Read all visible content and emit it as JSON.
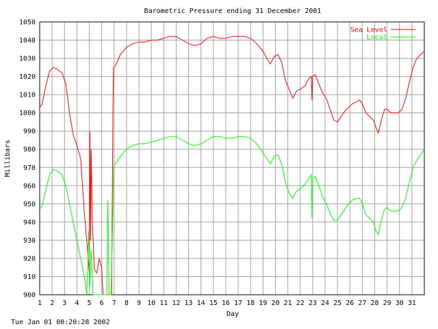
{
  "footer_timestamp": "Tue Jan 01 00:20:28 2002",
  "chart_data": {
    "type": "line",
    "title": "Barometric Pressure ending 31 December 2001",
    "xlabel": "Day",
    "ylabel": "Millibars",
    "xlim": [
      1,
      32
    ],
    "ylim": [
      900,
      1050
    ],
    "x_ticks": [
      "1",
      "2",
      "3",
      "4",
      "5",
      "6",
      "7",
      "8",
      "9",
      "10",
      "11",
      "12",
      "13",
      "14",
      "15",
      "16",
      "17",
      "18",
      "19",
      "20",
      "21",
      "22",
      "23",
      "24",
      "25",
      "26",
      "27",
      "28",
      "29",
      "30",
      "31"
    ],
    "y_ticks": [
      900,
      910,
      920,
      930,
      940,
      950,
      960,
      970,
      980,
      990,
      1000,
      1010,
      1020,
      1030,
      1040,
      1050
    ],
    "grid": true,
    "legend_position": "top-right",
    "series": [
      {
        "name": "Sea Level",
        "color": "#ff0000",
        "points": [
          [
            1.0,
            1003
          ],
          [
            1.2,
            1005
          ],
          [
            1.5,
            1015
          ],
          [
            1.8,
            1023
          ],
          [
            2.1,
            1025
          ],
          [
            2.4,
            1024
          ],
          [
            2.8,
            1022
          ],
          [
            3.1,
            1016
          ],
          [
            3.4,
            1000
          ],
          [
            3.7,
            988
          ],
          [
            4.0,
            982
          ],
          [
            4.3,
            975
          ],
          [
            4.6,
            945
          ],
          [
            4.85,
            925
          ],
          [
            5.0,
            912
          ],
          [
            5.05,
            990
          ],
          [
            5.1,
            930
          ],
          [
            5.15,
            980
          ],
          [
            5.25,
            940
          ],
          [
            5.4,
            914
          ],
          [
            5.6,
            912
          ],
          [
            5.8,
            920
          ],
          [
            6.0,
            915
          ],
          [
            6.1,
            900
          ],
          [
            6.3,
            900
          ],
          [
            6.5,
            900
          ],
          [
            6.65,
            900
          ],
          [
            6.8,
            900
          ],
          [
            6.9,
            1000
          ],
          [
            6.95,
            1025
          ],
          [
            7.1,
            1026
          ],
          [
            7.5,
            1032
          ],
          [
            8.0,
            1036
          ],
          [
            8.5,
            1038
          ],
          [
            9.0,
            1039
          ],
          [
            9.5,
            1039
          ],
          [
            10.0,
            1040
          ],
          [
            10.5,
            1040
          ],
          [
            11.0,
            1041
          ],
          [
            11.5,
            1042
          ],
          [
            12.0,
            1042
          ],
          [
            12.5,
            1040
          ],
          [
            13.0,
            1038
          ],
          [
            13.5,
            1037
          ],
          [
            14.0,
            1038
          ],
          [
            14.5,
            1041
          ],
          [
            15.0,
            1042
          ],
          [
            15.5,
            1041
          ],
          [
            16.0,
            1041
          ],
          [
            16.5,
            1042
          ],
          [
            17.0,
            1042
          ],
          [
            17.5,
            1042
          ],
          [
            18.0,
            1041
          ],
          [
            18.5,
            1038
          ],
          [
            19.0,
            1034
          ],
          [
            19.3,
            1030
          ],
          [
            19.6,
            1027
          ],
          [
            19.9,
            1031
          ],
          [
            20.2,
            1032
          ],
          [
            20.5,
            1028
          ],
          [
            20.8,
            1018
          ],
          [
            21.1,
            1013
          ],
          [
            21.4,
            1008
          ],
          [
            21.7,
            1012
          ],
          [
            22.0,
            1013
          ],
          [
            22.4,
            1015
          ],
          [
            22.7,
            1019
          ],
          [
            22.9,
            1020
          ],
          [
            22.95,
            1007
          ],
          [
            23.0,
            1020
          ],
          [
            23.2,
            1021
          ],
          [
            23.5,
            1016
          ],
          [
            23.8,
            1011
          ],
          [
            24.1,
            1008
          ],
          [
            24.4,
            1002
          ],
          [
            24.7,
            996
          ],
          [
            25.0,
            995
          ],
          [
            25.3,
            998
          ],
          [
            25.6,
            1001
          ],
          [
            25.9,
            1003
          ],
          [
            26.2,
            1005
          ],
          [
            26.5,
            1006
          ],
          [
            26.8,
            1007
          ],
          [
            27.0,
            1005
          ],
          [
            27.3,
            1000
          ],
          [
            27.6,
            998
          ],
          [
            27.9,
            996
          ],
          [
            28.1,
            992
          ],
          [
            28.3,
            989
          ],
          [
            28.5,
            995
          ],
          [
            28.8,
            1002
          ],
          [
            29.0,
            1002
          ],
          [
            29.3,
            1000
          ],
          [
            29.6,
            1000
          ],
          [
            29.9,
            1000
          ],
          [
            30.2,
            1002
          ],
          [
            30.5,
            1008
          ],
          [
            30.8,
            1017
          ],
          [
            31.1,
            1025
          ],
          [
            31.4,
            1030
          ],
          [
            31.7,
            1032
          ],
          [
            32.0,
            1034
          ]
        ]
      },
      {
        "name": "Local",
        "color": "#00ff00",
        "points": [
          [
            1.0,
            947
          ],
          [
            1.2,
            949
          ],
          [
            1.5,
            958
          ],
          [
            1.8,
            966
          ],
          [
            2.1,
            969
          ],
          [
            2.4,
            968
          ],
          [
            2.8,
            966
          ],
          [
            3.1,
            960
          ],
          [
            3.4,
            950
          ],
          [
            3.7,
            940
          ],
          [
            4.0,
            930
          ],
          [
            4.3,
            920
          ],
          [
            4.6,
            910
          ],
          [
            4.8,
            900
          ],
          [
            4.95,
            935
          ],
          [
            5.05,
            905
          ],
          [
            5.15,
            925
          ],
          [
            5.3,
            900
          ],
          [
            5.6,
            900
          ],
          [
            6.0,
            900
          ],
          [
            6.3,
            900
          ],
          [
            6.4,
            900
          ],
          [
            6.5,
            952
          ],
          [
            6.6,
            900
          ],
          [
            6.75,
            900
          ],
          [
            6.9,
            945
          ],
          [
            6.95,
            970
          ],
          [
            7.1,
            972
          ],
          [
            7.5,
            976
          ],
          [
            8.0,
            980
          ],
          [
            8.5,
            982
          ],
          [
            9.0,
            983
          ],
          [
            9.5,
            983
          ],
          [
            10.0,
            984
          ],
          [
            10.5,
            985
          ],
          [
            11.0,
            986
          ],
          [
            11.5,
            987
          ],
          [
            12.0,
            987
          ],
          [
            12.5,
            985
          ],
          [
            13.0,
            983
          ],
          [
            13.5,
            982
          ],
          [
            14.0,
            983
          ],
          [
            14.5,
            985
          ],
          [
            15.0,
            987
          ],
          [
            15.5,
            987
          ],
          [
            16.0,
            986
          ],
          [
            16.5,
            986
          ],
          [
            17.0,
            987
          ],
          [
            17.5,
            987
          ],
          [
            18.0,
            986
          ],
          [
            18.5,
            983
          ],
          [
            19.0,
            978
          ],
          [
            19.3,
            975
          ],
          [
            19.6,
            972
          ],
          [
            19.9,
            976
          ],
          [
            20.2,
            977
          ],
          [
            20.5,
            972
          ],
          [
            20.8,
            962
          ],
          [
            21.1,
            956
          ],
          [
            21.4,
            953
          ],
          [
            21.7,
            957
          ],
          [
            22.0,
            958
          ],
          [
            22.4,
            961
          ],
          [
            22.7,
            964
          ],
          [
            22.9,
            966
          ],
          [
            22.95,
            942
          ],
          [
            23.0,
            964
          ],
          [
            23.2,
            965
          ],
          [
            23.5,
            960
          ],
          [
            23.8,
            954
          ],
          [
            24.1,
            950
          ],
          [
            24.4,
            945
          ],
          [
            24.7,
            941
          ],
          [
            25.0,
            941
          ],
          [
            25.3,
            944
          ],
          [
            25.6,
            947
          ],
          [
            25.9,
            950
          ],
          [
            26.2,
            952
          ],
          [
            26.5,
            953
          ],
          [
            26.8,
            953
          ],
          [
            27.0,
            950
          ],
          [
            27.3,
            944
          ],
          [
            27.6,
            942
          ],
          [
            27.9,
            940
          ],
          [
            28.1,
            935
          ],
          [
            28.3,
            933
          ],
          [
            28.5,
            940
          ],
          [
            28.8,
            947
          ],
          [
            29.0,
            948
          ],
          [
            29.3,
            946
          ],
          [
            29.6,
            946
          ],
          [
            29.9,
            946
          ],
          [
            30.2,
            948
          ],
          [
            30.5,
            953
          ],
          [
            30.8,
            962
          ],
          [
            31.1,
            970
          ],
          [
            31.4,
            974
          ],
          [
            31.7,
            977
          ],
          [
            32.0,
            980
          ]
        ]
      }
    ]
  }
}
